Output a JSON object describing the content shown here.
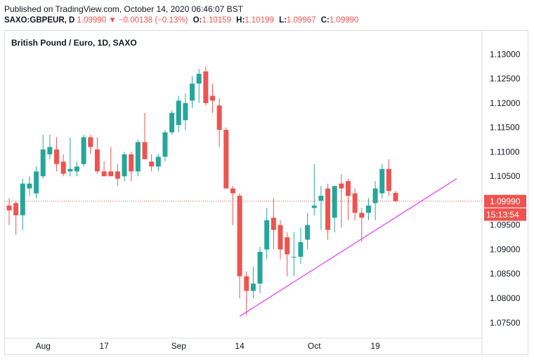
{
  "header": {
    "published": "Published on TradingView.com, October 14, 2020 06:46:07 BST",
    "symbol": "SAXO:GBPEUR, D",
    "last": "1.09990",
    "change_arrow": "▼",
    "change": "−0.00138 (−0.13%)",
    "open_label": "O:",
    "open": "1.10159",
    "high_label": "H:",
    "high": "1.10199",
    "low_label": "L:",
    "low": "1.09967",
    "close_label": "C:",
    "close": "1.09990"
  },
  "chart_data": {
    "type": "candlestick",
    "title": "British Pound / Euro, 1D, SAXO",
    "ylim": [
      1.0718,
      1.1348
    ],
    "y_ticks": [
      "1.13000",
      "1.12500",
      "1.12000",
      "1.11500",
      "1.11000",
      "1.10500",
      "1.10000",
      "1.09500",
      "1.09000",
      "1.08500",
      "1.08000",
      "1.07500"
    ],
    "x_ticks": [
      "Aug",
      "17",
      "Sep",
      "14",
      "Oct",
      "19"
    ],
    "x_tick_index": [
      5,
      14,
      25,
      34,
      45,
      54
    ],
    "last_price_label": "1.09990",
    "countdown_label": "15:13:54",
    "colors": {
      "up": "#26a69a",
      "down": "#ef5350",
      "trendline": "#e040fb",
      "price_line": "#ef5350"
    },
    "candles": [
      {
        "o": 1.099,
        "h": 1.1005,
        "l": 1.095,
        "c": 1.098
      },
      {
        "o": 1.0995,
        "h": 1.1,
        "l": 1.093,
        "c": 1.097
      },
      {
        "o": 1.097,
        "h": 1.1045,
        "l": 1.094,
        "c": 1.1035
      },
      {
        "o": 1.1025,
        "h": 1.105,
        "l": 1.101,
        "c": 1.1035
      },
      {
        "o": 1.1015,
        "h": 1.107,
        "l": 1.1005,
        "c": 1.106
      },
      {
        "o": 1.105,
        "h": 1.1135,
        "l": 1.1045,
        "c": 1.1105
      },
      {
        "o": 1.1095,
        "h": 1.1135,
        "l": 1.1085,
        "c": 1.111
      },
      {
        "o": 1.1105,
        "h": 1.113,
        "l": 1.106,
        "c": 1.1075
      },
      {
        "o": 1.108,
        "h": 1.1095,
        "l": 1.105,
        "c": 1.1055
      },
      {
        "o": 1.106,
        "h": 1.113,
        "l": 1.105,
        "c": 1.1065
      },
      {
        "o": 1.106,
        "h": 1.108,
        "l": 1.105,
        "c": 1.107
      },
      {
        "o": 1.1075,
        "h": 1.1135,
        "l": 1.107,
        "c": 1.113
      },
      {
        "o": 1.113,
        "h": 1.1135,
        "l": 1.1095,
        "c": 1.111
      },
      {
        "o": 1.1105,
        "h": 1.113,
        "l": 1.1055,
        "c": 1.106
      },
      {
        "o": 1.106,
        "h": 1.108,
        "l": 1.105,
        "c": 1.105
      },
      {
        "o": 1.106,
        "h": 1.111,
        "l": 1.105,
        "c": 1.105
      },
      {
        "o": 1.106,
        "h": 1.1075,
        "l": 1.103,
        "c": 1.1045
      },
      {
        "o": 1.105,
        "h": 1.11,
        "l": 1.104,
        "c": 1.1095
      },
      {
        "o": 1.1095,
        "h": 1.11,
        "l": 1.104,
        "c": 1.106
      },
      {
        "o": 1.106,
        "h": 1.1125,
        "l": 1.105,
        "c": 1.112
      },
      {
        "o": 1.112,
        "h": 1.118,
        "l": 1.109,
        "c": 1.1085
      },
      {
        "o": 1.108,
        "h": 1.1095,
        "l": 1.106,
        "c": 1.107
      },
      {
        "o": 1.107,
        "h": 1.1095,
        "l": 1.106,
        "c": 1.109
      },
      {
        "o": 1.109,
        "h": 1.1145,
        "l": 1.108,
        "c": 1.114
      },
      {
        "o": 1.114,
        "h": 1.1185,
        "l": 1.1135,
        "c": 1.118
      },
      {
        "o": 1.1155,
        "h": 1.1215,
        "l": 1.114,
        "c": 1.1205
      },
      {
        "o": 1.1165,
        "h": 1.122,
        "l": 1.1145,
        "c": 1.12
      },
      {
        "o": 1.1205,
        "h": 1.1255,
        "l": 1.119,
        "c": 1.124
      },
      {
        "o": 1.124,
        "h": 1.127,
        "l": 1.12,
        "c": 1.126
      },
      {
        "o": 1.1265,
        "h": 1.1275,
        "l": 1.1195,
        "c": 1.12
      },
      {
        "o": 1.1215,
        "h": 1.124,
        "l": 1.118,
        "c": 1.1205
      },
      {
        "o": 1.1195,
        "h": 1.121,
        "l": 1.111,
        "c": 1.1145
      },
      {
        "o": 1.1145,
        "h": 1.115,
        "l": 1.1025,
        "c": 1.1025
      },
      {
        "o": 1.1025,
        "h": 1.103,
        "l": 1.095,
        "c": 1.1015
      },
      {
        "o": 1.101,
        "h": 1.1015,
        "l": 1.08,
        "c": 1.0845
      },
      {
        "o": 1.0845,
        "h": 1.0855,
        "l": 1.0765,
        "c": 1.0815
      },
      {
        "o": 1.0815,
        "h": 1.0865,
        "l": 1.08,
        "c": 1.083
      },
      {
        "o": 1.083,
        "h": 1.0905,
        "l": 1.081,
        "c": 1.0895
      },
      {
        "o": 1.09,
        "h": 1.0985,
        "l": 1.088,
        "c": 1.096
      },
      {
        "o": 1.0965,
        "h": 1.1005,
        "l": 1.09,
        "c": 1.094
      },
      {
        "o": 1.095,
        "h": 1.096,
        "l": 1.088,
        "c": 1.09
      },
      {
        "o": 1.0925,
        "h": 1.0935,
        "l": 1.0845,
        "c": 1.089
      },
      {
        "o": 1.0885,
        "h": 1.0935,
        "l": 1.0845,
        "c": 1.0885
      },
      {
        "o": 1.0885,
        "h": 1.0945,
        "l": 1.087,
        "c": 1.0915
      },
      {
        "o": 1.092,
        "h": 1.0975,
        "l": 1.09,
        "c": 1.095
      },
      {
        "o": 1.0985,
        "h": 1.1075,
        "l": 1.097,
        "c": 1.099
      },
      {
        "o": 1.1,
        "h": 1.103,
        "l": 1.094,
        "c": 1.101
      },
      {
        "o": 1.1025,
        "h": 1.1035,
        "l": 1.092,
        "c": 1.094
      },
      {
        "o": 1.0965,
        "h": 1.103,
        "l": 1.0935,
        "c": 1.103
      },
      {
        "o": 1.1035,
        "h": 1.1055,
        "l": 1.0945,
        "c": 1.1025
      },
      {
        "o": 1.104,
        "h": 1.1045,
        "l": 1.096,
        "c": 1.101
      },
      {
        "o": 1.1015,
        "h": 1.1025,
        "l": 1.096,
        "c": 1.0975
      },
      {
        "o": 1.0975,
        "h": 1.0985,
        "l": 1.0915,
        "c": 1.0965
      },
      {
        "o": 1.0975,
        "h": 1.1005,
        "l": 1.096,
        "c": 1.099
      },
      {
        "o": 1.0995,
        "h": 1.104,
        "l": 1.096,
        "c": 1.1025
      },
      {
        "o": 1.1015,
        "h": 1.1075,
        "l": 1.1005,
        "c": 1.1065
      },
      {
        "o": 1.1065,
        "h": 1.1085,
        "l": 1.101,
        "c": 1.102
      },
      {
        "o": 1.1016,
        "h": 1.102,
        "l": 1.0997,
        "c": 1.0999
      }
    ],
    "trendline": {
      "from": {
        "index": 34,
        "price": 1.0763
      },
      "to": {
        "index": 66,
        "price": 1.1045
      }
    }
  }
}
